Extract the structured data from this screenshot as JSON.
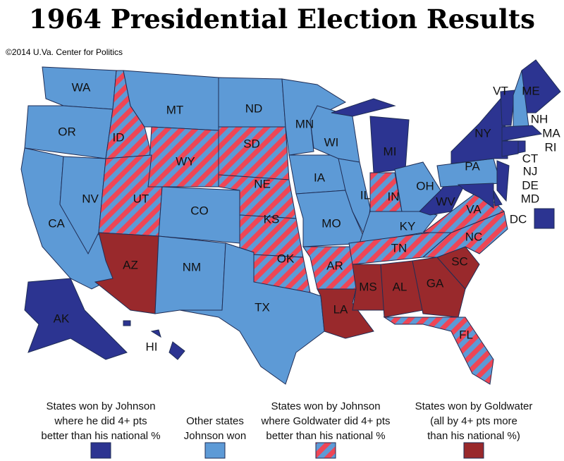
{
  "title": "1964 Presidential Election Results",
  "credit": "©2014 U.Va. Center for Politics",
  "legend": [
    {
      "lines": [
        "States won by Johnson",
        "where he did 4+ pts",
        "better than his national %"
      ],
      "fill": [
        "#2c3491"
      ]
    },
    {
      "lines": [
        "Other states",
        "Johnson won"
      ],
      "fill": [
        "#5d9ad6"
      ]
    },
    {
      "lines": [
        "States won by Johnson",
        "where Goldwater did 4+ pts",
        "better than his national %"
      ],
      "fill": [
        "#ee4656",
        "#5d9ad6"
      ]
    },
    {
      "lines": [
        "States won by Goldwater",
        "(all by 4+ pts more",
        "than his national %)"
      ],
      "fill": [
        "#99292c"
      ]
    }
  ],
  "states": [
    {
      "label": "WA",
      "group": 1
    },
    {
      "label": "OR",
      "group": 1
    },
    {
      "label": "CA",
      "group": 1
    },
    {
      "label": "NV",
      "group": 1
    },
    {
      "label": "ID",
      "group": 2
    },
    {
      "label": "MT",
      "group": 1
    },
    {
      "label": "WY",
      "group": 2
    },
    {
      "label": "UT",
      "group": 2
    },
    {
      "label": "CO",
      "group": 1
    },
    {
      "label": "AZ",
      "group": 3
    },
    {
      "label": "NM",
      "group": 1
    },
    {
      "label": "ND",
      "group": 1
    },
    {
      "label": "SD",
      "group": 2
    },
    {
      "label": "NE",
      "group": 2
    },
    {
      "label": "KS",
      "group": 2
    },
    {
      "label": "OK",
      "group": 2
    },
    {
      "label": "TX",
      "group": 1
    },
    {
      "label": "MN",
      "group": 1
    },
    {
      "label": "IA",
      "group": 1
    },
    {
      "label": "MO",
      "group": 1
    },
    {
      "label": "AR",
      "group": 2
    },
    {
      "label": "LA",
      "group": 3
    },
    {
      "label": "WI",
      "group": 1
    },
    {
      "label": "IL",
      "group": 1
    },
    {
      "label": "MI",
      "group": 0
    },
    {
      "label": "IN",
      "group": 2
    },
    {
      "label": "OH",
      "group": 1
    },
    {
      "label": "KY",
      "group": 1
    },
    {
      "label": "TN",
      "group": 2
    },
    {
      "label": "MS",
      "group": 3
    },
    {
      "label": "AL",
      "group": 3
    },
    {
      "label": "GA",
      "group": 3
    },
    {
      "label": "FL",
      "group": 2
    },
    {
      "label": "SC",
      "group": 3
    },
    {
      "label": "NC",
      "group": 2
    },
    {
      "label": "VA",
      "group": 2
    },
    {
      "label": "WV",
      "group": 0
    },
    {
      "label": "PA",
      "group": 1
    },
    {
      "label": "NY",
      "group": 0
    },
    {
      "label": "VT",
      "group": 0
    },
    {
      "label": "ME",
      "group": 0
    },
    {
      "label": "NH",
      "group": 1
    },
    {
      "label": "MA",
      "group": 0
    },
    {
      "label": "RI",
      "group": 0
    },
    {
      "label": "CT",
      "group": 0
    },
    {
      "label": "NJ",
      "group": 0
    },
    {
      "label": "DE",
      "group": 0
    },
    {
      "label": "MD",
      "group": 0
    },
    {
      "label": "DC",
      "group": 0
    },
    {
      "label": "AK",
      "group": 0
    },
    {
      "label": "HI",
      "group": 0
    }
  ]
}
